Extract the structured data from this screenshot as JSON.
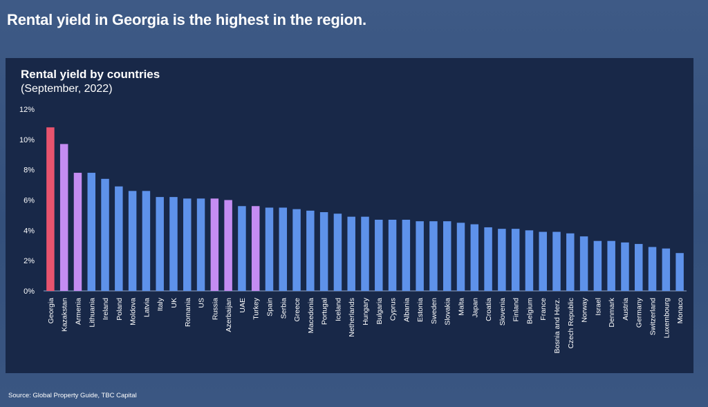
{
  "slide": {
    "title": "Rental yield in Georgia is the highest in the region.",
    "source": "Source: Global Property Guide, TBC Capital"
  },
  "colors": {
    "background": "#3a5682",
    "panel": "#182848",
    "highlight": "#e8546e",
    "peer": "#c48cf2",
    "default": "#5e92ea"
  },
  "chart_data": {
    "type": "bar",
    "title": "Rental yield by countries",
    "subtitle": "(September, 2022)",
    "ylim": [
      0,
      12
    ],
    "yticks": [
      "0%",
      "2%",
      "4%",
      "6%",
      "8%",
      "10%",
      "12%"
    ],
    "grid": false,
    "categories": [
      "Georgia",
      "Kazakstan",
      "Armenia",
      "Lithuania",
      "Ireland",
      "Poland",
      "Moldova",
      "Latvia",
      "Italy",
      "UK",
      "Romania",
      "US",
      "Russia",
      "Azerbaijan",
      "UAE",
      "Turkey",
      "Spain",
      "Serbia",
      "Greece",
      "Macedonia",
      "Portugal",
      "Iceland",
      "Netherlands",
      "Hungary",
      "Bulgaria",
      "Cyprus",
      "Albania",
      "Estonia",
      "Sweden",
      "Slovakia",
      "Malta",
      "Japan",
      "Croatia",
      "Slovenia",
      "Finland",
      "Belgium",
      "France",
      "Bosnia and Herz.",
      "Czech Republic",
      "Norway",
      "Israel",
      "Denmark",
      "Austria",
      "Germany",
      "Switzerland",
      "Luxembourg",
      "Monaco"
    ],
    "values": [
      10.8,
      9.7,
      7.8,
      7.8,
      7.4,
      6.9,
      6.6,
      6.6,
      6.2,
      6.2,
      6.1,
      6.1,
      6.1,
      6.0,
      5.6,
      5.6,
      5.5,
      5.5,
      5.4,
      5.3,
      5.2,
      5.1,
      4.9,
      4.9,
      4.7,
      4.7,
      4.7,
      4.6,
      4.6,
      4.6,
      4.5,
      4.4,
      4.2,
      4.1,
      4.1,
      4.0,
      3.9,
      3.9,
      3.8,
      3.6,
      3.3,
      3.3,
      3.2,
      3.1,
      2.9,
      2.8,
      2.5
    ],
    "bar_colors": [
      "highlight",
      "peer",
      "peer",
      "default",
      "default",
      "default",
      "default",
      "default",
      "default",
      "default",
      "default",
      "default",
      "peer",
      "peer",
      "default",
      "peer",
      "default",
      "default",
      "default",
      "default",
      "default",
      "default",
      "default",
      "default",
      "default",
      "default",
      "default",
      "default",
      "default",
      "default",
      "default",
      "default",
      "default",
      "default",
      "default",
      "default",
      "default",
      "default",
      "default",
      "default",
      "default",
      "default",
      "default",
      "default",
      "default",
      "default",
      "default"
    ],
    "unit": "%"
  }
}
